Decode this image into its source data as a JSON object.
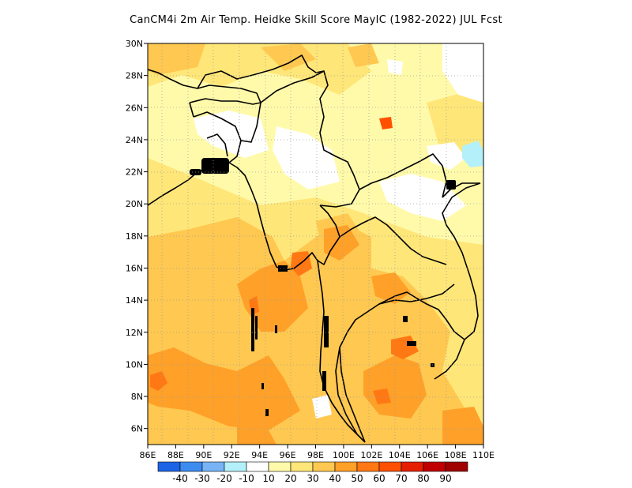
{
  "title": "CanCM4i 2m Air Temp. Heidke Skill Score MayIC (1982-2022) JUL Fcst",
  "map": {
    "lon_range": [
      86,
      110
    ],
    "lat_range": [
      5,
      30
    ],
    "lon_ticks": [
      "86E",
      "88E",
      "90E",
      "92E",
      "94E",
      "96E",
      "98E",
      "100E",
      "102E",
      "104E",
      "106E",
      "108E",
      "110E"
    ],
    "lat_ticks": [
      "6N",
      "8N",
      "10N",
      "12N",
      "14N",
      "16N",
      "18N",
      "20N",
      "22N",
      "24N",
      "26N",
      "28N",
      "30N"
    ]
  },
  "colorbar": {
    "labels": [
      "-40",
      "-30",
      "-20",
      "-10",
      "10",
      "20",
      "30",
      "40",
      "50",
      "60",
      "70",
      "80",
      "90"
    ],
    "colors": [
      "#1c64e6",
      "#3c8cf0",
      "#78b4f5",
      "#b4f0fa",
      "#ffffff",
      "#fffaaa",
      "#ffe678",
      "#ffc850",
      "#ffa028",
      "#ff7814",
      "#ff5000",
      "#e61e00",
      "#c00000",
      "#a00000"
    ]
  }
}
